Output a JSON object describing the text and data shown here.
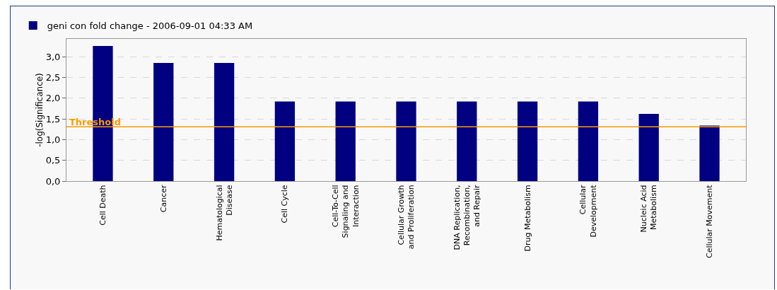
{
  "chart_data": {
    "type": "bar",
    "categories": [
      "Cell Death",
      "Cancer",
      "Hematological\nDisease",
      "Cell Cycle",
      "Cell-To-Cell\nSignaling and\nInteraction",
      "Cellular Growth\nand Proliferation",
      "DNA Replication,\nRecombination,\nand Repair",
      "Drug Metabolism",
      "Cellular\nDevelopment",
      "Nucleic Acid\nMetabolism",
      "Cellular Movement"
    ],
    "series": [
      {
        "name": "geni con fold change - 2006-09-01 04:33 AM",
        "color": "#000080",
        "values": [
          3.26,
          2.85,
          2.85,
          1.92,
          1.92,
          1.92,
          1.92,
          1.92,
          1.92,
          1.62,
          1.34
        ]
      }
    ],
    "ylabel": "-log(Significance)",
    "ylim": [
      0,
      3.43
    ],
    "yticks": [
      {
        "value": 0,
        "label": "0,0"
      },
      {
        "value": 0.5,
        "label": "0,5"
      },
      {
        "value": 1,
        "label": "1,0"
      },
      {
        "value": 1.5,
        "label": "1,5"
      },
      {
        "value": 2,
        "label": "2,0"
      },
      {
        "value": 2.5,
        "label": "2,5"
      },
      {
        "value": 3,
        "label": "3,0"
      }
    ],
    "ref_lines": [
      {
        "axis": "y",
        "value": 1.31,
        "label": "Threshold",
        "color": "#ff9900"
      }
    ],
    "grid": "y",
    "legend": "top left"
  }
}
